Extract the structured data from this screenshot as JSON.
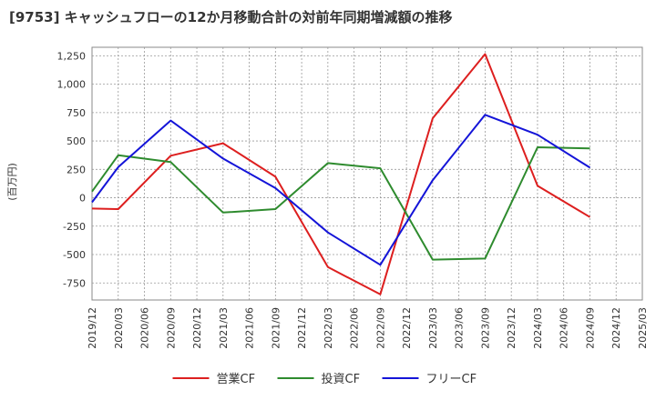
{
  "chart_data": {
    "type": "line",
    "title": "[9753]  キャッシュフローの12か月移動合計の対前年同期増減額の推移",
    "ylabel": "(百万円)",
    "xlabel": "",
    "ylim": [
      -900,
      1325
    ],
    "yticks": [
      -750,
      -500,
      -250,
      0,
      250,
      500,
      750,
      1000,
      1250
    ],
    "ytick_labels": [
      "-750",
      "-500",
      "-250",
      "0",
      "250",
      "500",
      "750",
      "1,000",
      "1,250"
    ],
    "categories": [
      "2019/12",
      "2020/03",
      "2020/06",
      "2020/09",
      "2020/12",
      "2021/03",
      "2021/06",
      "2021/09",
      "2021/12",
      "2022/03",
      "2022/06",
      "2022/09",
      "2022/12",
      "2023/03",
      "2023/06",
      "2023/09",
      "2023/12",
      "2024/03",
      "2024/06",
      "2024/09",
      "2024/12",
      "2025/03"
    ],
    "grid": true,
    "legend_position": "bottom",
    "series": [
      {
        "name": "営業CF",
        "color": "#dd1f1f",
        "values": [
          -95,
          -100,
          null,
          370,
          null,
          480,
          null,
          185,
          null,
          -610,
          null,
          -850,
          null,
          700,
          null,
          1265,
          null,
          105,
          null,
          -170,
          null,
          null
        ]
      },
      {
        "name": "投資CF",
        "color": "#2e8b2e",
        "values": [
          55,
          375,
          null,
          315,
          null,
          -130,
          null,
          -100,
          null,
          305,
          null,
          260,
          null,
          -545,
          null,
          -535,
          null,
          445,
          null,
          435,
          null,
          null
        ]
      },
      {
        "name": "フリーCF",
        "color": "#1414d8",
        "values": [
          -40,
          270,
          null,
          680,
          null,
          345,
          null,
          85,
          null,
          -305,
          null,
          -590,
          null,
          155,
          null,
          730,
          null,
          555,
          null,
          265,
          null,
          null
        ]
      }
    ]
  }
}
